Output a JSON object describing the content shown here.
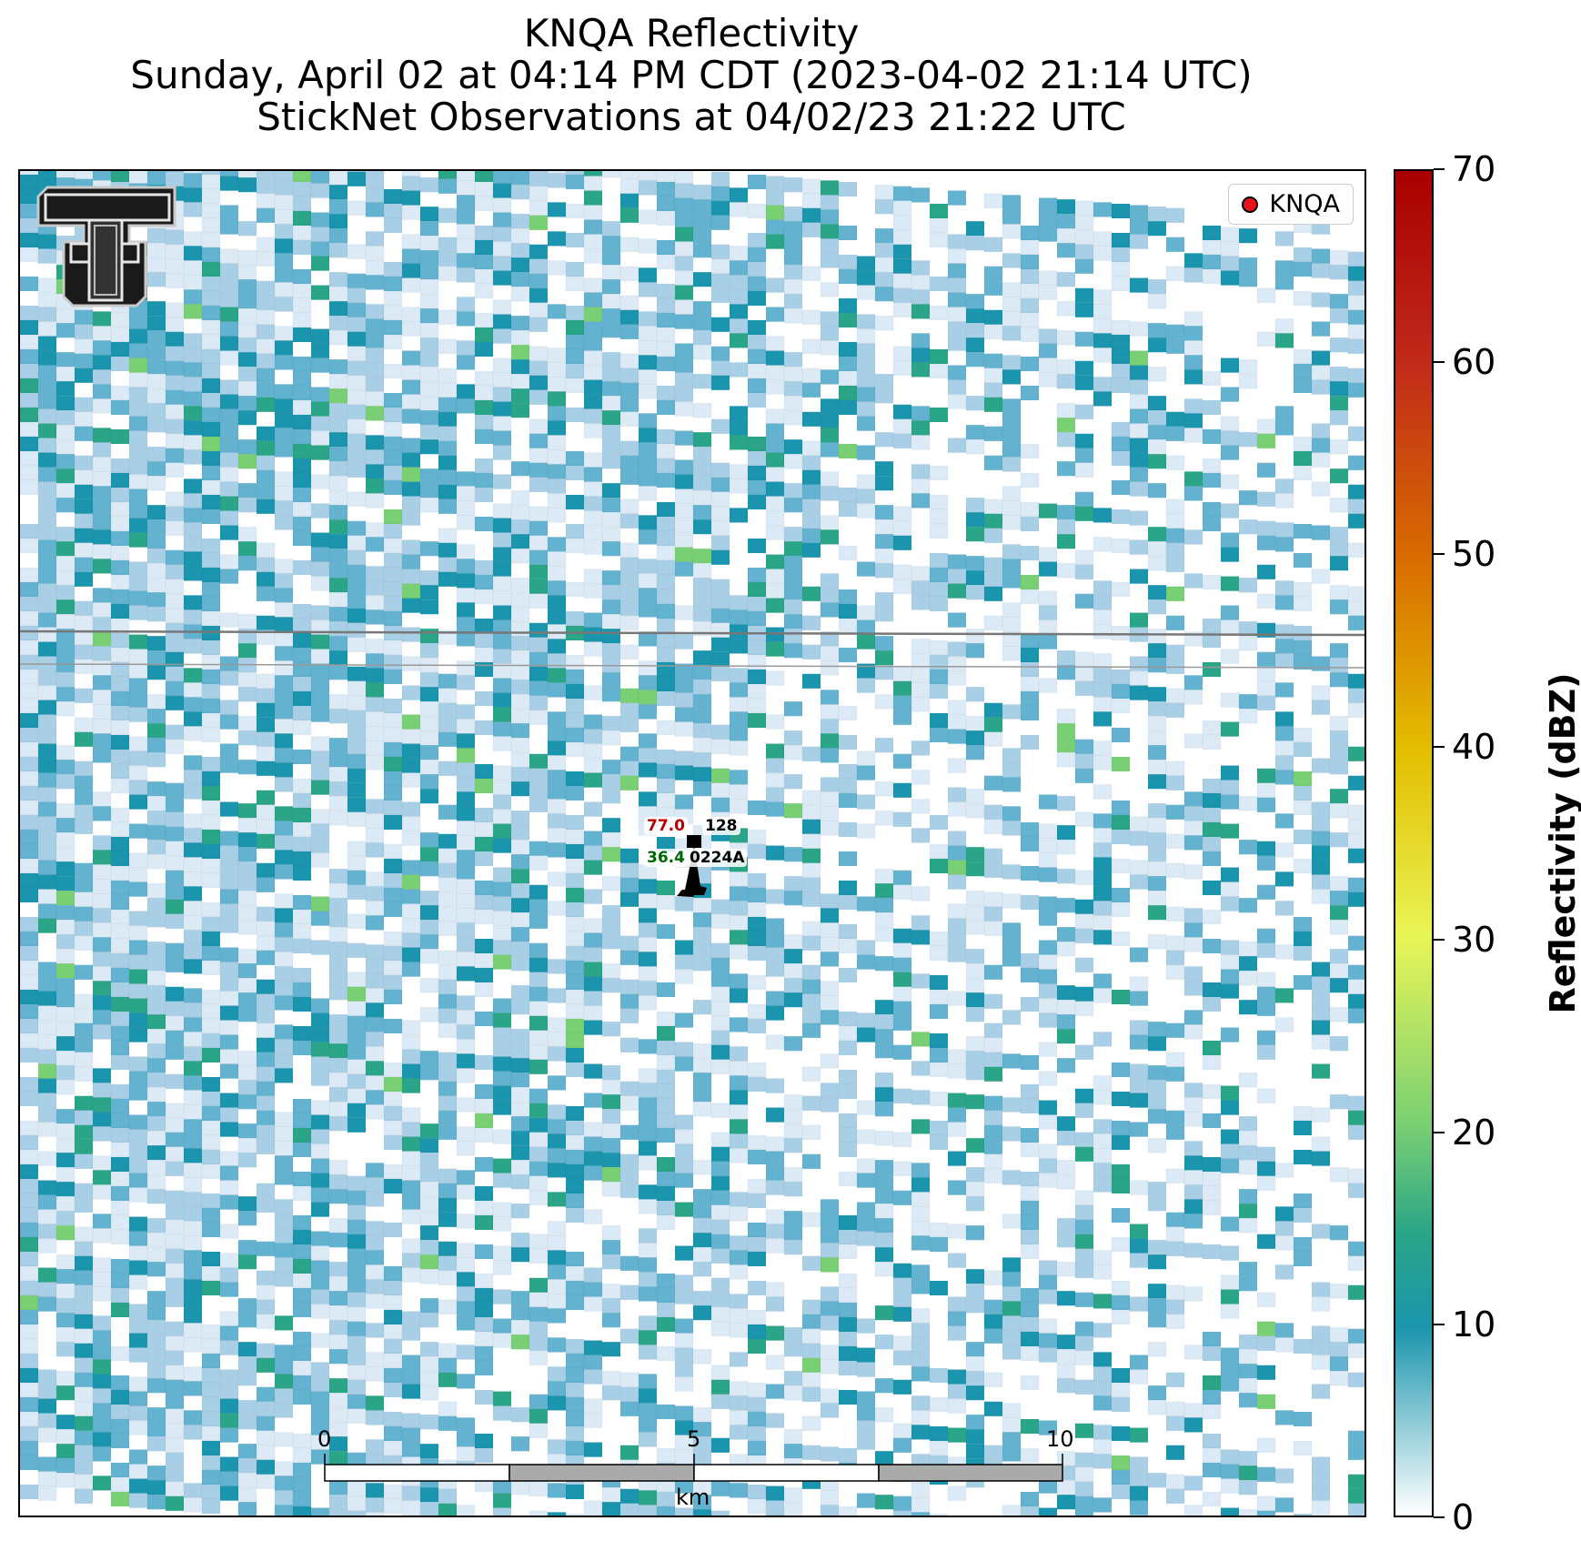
{
  "header": {
    "title": "KNQA Reflectivity",
    "subtitle": "Sunday, April 02 at 04:14 PM CDT (2023-04-02 21:14 UTC)",
    "observations": "StickNet Observations at 04/02/23 21:22 UTC"
  },
  "legend": {
    "label": "KNQA",
    "marker_color": "#e8131a"
  },
  "station": {
    "id": "0224A",
    "temperature": "77.0",
    "dewpoint": "36.4",
    "pressure": "128",
    "temperature_color": "#b30000",
    "dewpoint_color": "#006400"
  },
  "colorbar": {
    "label": "Reflectivity (dBZ)",
    "min": 0,
    "max": 70,
    "ticks": [
      "0",
      "10",
      "20",
      "30",
      "40",
      "50",
      "60",
      "70"
    ]
  },
  "scale_bar": {
    "ticks": [
      "0",
      "5",
      "10"
    ],
    "unit": "km"
  },
  "logo": {
    "name": "Texas Tech Double T"
  },
  "palette": [
    "#ffffff",
    "#dbeaf5",
    "#a9cfe6",
    "#62b2d0",
    "#1b95ad",
    "#2aa587",
    "#79cf73"
  ]
}
